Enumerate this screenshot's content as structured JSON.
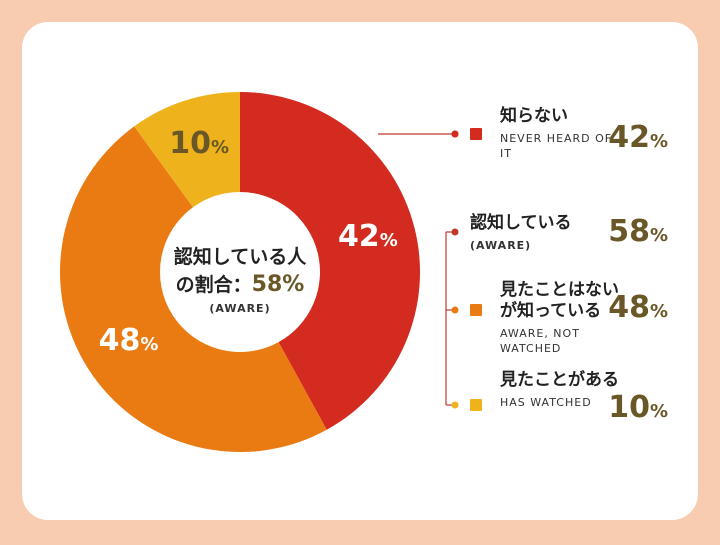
{
  "chart_data": {
    "type": "pie",
    "categories": [
      "知らない",
      "見たことはないが知っている",
      "見たことがある"
    ],
    "sublabels": [
      "NEVER HEARD OF IT",
      "AWARE, NOT WATCHED",
      "HAS WATCHED"
    ],
    "values": [
      42,
      48,
      10
    ],
    "value_labels": [
      "42%",
      "48%",
      "10%"
    ],
    "colors": [
      "#d32b1f",
      "#ea7b12",
      "#eeb21c"
    ],
    "center": {
      "title": "認知している人の割合：",
      "value": 58,
      "value_label": "58%",
      "note": "(AWARE)"
    },
    "group": {
      "name": "認知している",
      "note": "(AWARE)",
      "value": 58,
      "value_label": "58%"
    }
  }
}
